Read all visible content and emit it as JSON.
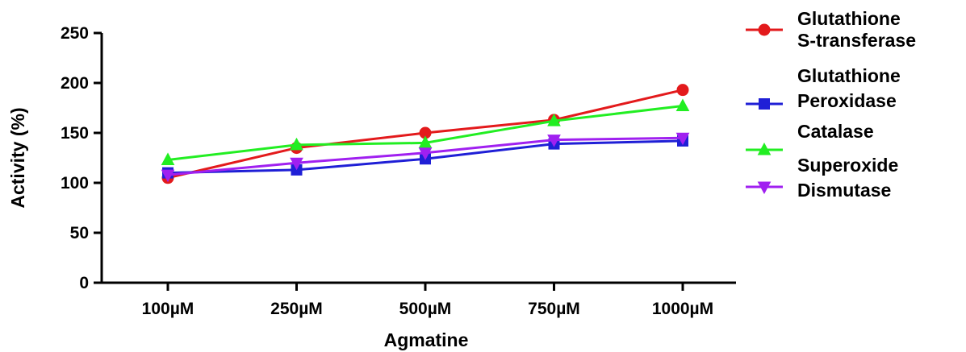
{
  "chart_data": {
    "type": "line",
    "title": "",
    "xlabel": "Agmatine",
    "ylabel": "Activity (%)",
    "categories": [
      "100µM",
      "250µM",
      "500µM",
      "750µM",
      "1000µM"
    ],
    "ylim": [
      0,
      250
    ],
    "yticks": [
      0,
      50,
      100,
      150,
      200,
      250
    ],
    "grid": false,
    "legend_position": "right",
    "series": [
      {
        "name": "Glutathione S-transferase",
        "legend_lines": [
          "Glutathione",
          "S-transferase"
        ],
        "color": "#e31a1c",
        "marker": "circle",
        "values": [
          105,
          135,
          150,
          163,
          193
        ]
      },
      {
        "name": "Glutathione Peroxidase",
        "legend_lines": [
          "Glutathione",
          "Peroxidase"
        ],
        "color": "#1f1fd6",
        "marker": "square",
        "values": [
          110,
          113,
          124,
          139,
          142
        ]
      },
      {
        "name": "Catalase",
        "legend_lines": [
          "Catalase"
        ],
        "color": "#22ee22",
        "marker": "triangle-up",
        "values": [
          123,
          138,
          140,
          162,
          177
        ]
      },
      {
        "name": "Superoxide Dismutase",
        "legend_lines": [
          "Superoxide",
          "Dismutase"
        ],
        "color": "#a020f0",
        "marker": "triangle-down",
        "values": [
          108,
          120,
          130,
          143,
          145
        ]
      }
    ]
  }
}
